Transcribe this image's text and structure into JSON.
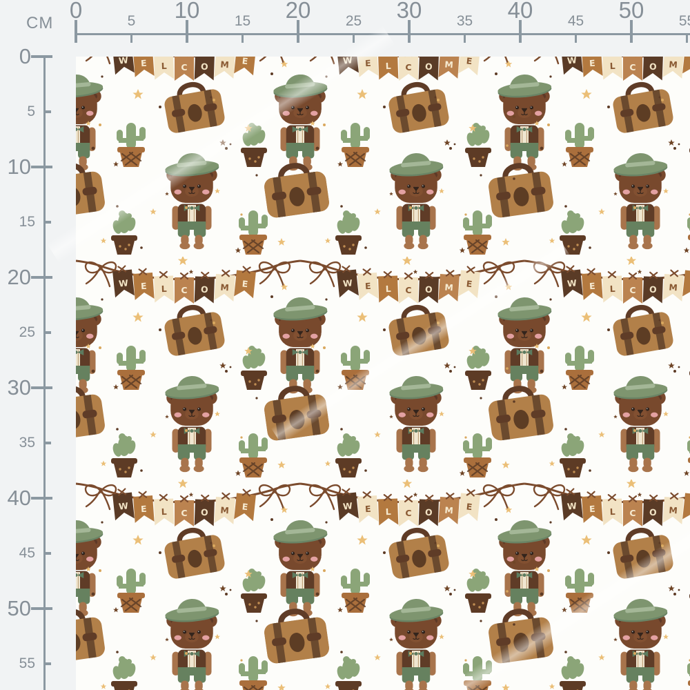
{
  "app": {
    "view_title": "Fabric pattern preview with centimeter rulers"
  },
  "ruler": {
    "unit_label": "CM",
    "horizontal_ticks": [
      0,
      5,
      10,
      15,
      20,
      25,
      30,
      35,
      40,
      45,
      50,
      55
    ],
    "vertical_ticks": [
      0,
      5,
      10,
      15,
      20,
      25,
      30,
      35,
      40,
      45,
      50,
      55
    ],
    "major_interval": 10
  },
  "pattern": {
    "banner_word": "WELCOME",
    "banner_groups": [
      {
        "flags": [
          {
            "letter": "W",
            "flag_color": "#5a3b26",
            "letter_color": "#f2e3c4"
          },
          {
            "letter": "E",
            "flag_color": "#b3793f",
            "letter_color": "#f6ead0"
          },
          {
            "letter": "L",
            "flag_color": "#f2e3c4",
            "letter_color": "#8a5a33"
          },
          {
            "letter": "C",
            "flag_color": "#bb8350",
            "letter_color": "#f6ead0"
          },
          {
            "letter": "O",
            "flag_color": "#5a3b26",
            "letter_color": "#f2e3c4"
          },
          {
            "letter": "M",
            "flag_color": "#f2e3c4",
            "letter_color": "#8a5a33"
          },
          {
            "letter": "E",
            "flag_color": "#b3793f",
            "letter_color": "#f6ead0"
          }
        ]
      },
      {
        "flags": [
          {
            "letter": "W",
            "flag_color": "#5a3b26",
            "letter_color": "#f2e3c4"
          },
          {
            "letter": "E",
            "flag_color": "#f2e3c4",
            "letter_color": "#8a5a33"
          },
          {
            "letter": "L",
            "flag_color": "#b3793f",
            "letter_color": "#f6ead0"
          },
          {
            "letter": "C",
            "flag_color": "#f2e3c4",
            "letter_color": "#8a5a33"
          },
          {
            "letter": "O",
            "flag_color": "#5a3b26",
            "letter_color": "#f2e3c4"
          },
          {
            "letter": "M",
            "flag_color": "#bb8350",
            "letter_color": "#f6ead0"
          },
          {
            "letter": "E",
            "flag_color": "#f2e3c4",
            "letter_color": "#8a5a33"
          }
        ]
      }
    ],
    "motifs": [
      "teddy-bear-with-green-hat",
      "brown-leather-suitcase",
      "cactus-in-caramel-lattice-pot",
      "cactus-in-dark-dotted-pot",
      "welcome-pennant-banner-with-bows",
      "gold-stars",
      "brown-stars",
      "sprinkle-dots"
    ],
    "colors": {
      "page_background": "#f1f3f4",
      "fabric_background": "#fdfdfa",
      "ruler_line": "#8b98a1",
      "ruler_text": "#868f97",
      "bear_fur": "#78492d",
      "bear_fur_light": "#a8744c",
      "bear_vest": "#5f3c27",
      "bear_shirt": "#f0e6d0",
      "hat_green": "#7e956f",
      "hat_band": "#a4b797",
      "pants_green": "#66815f",
      "suitcase_body": "#b28049",
      "suitcase_strap": "#6b4a2e",
      "cactus_green": "#8ba578",
      "pot_caramel": "#aa6f3c",
      "pot_dark": "#5d3b25",
      "banner_string": "#7b4b2d",
      "star_gold": "#ebbf77",
      "star_brown": "#6f4526",
      "cheek_pink": "#efabb0"
    }
  }
}
